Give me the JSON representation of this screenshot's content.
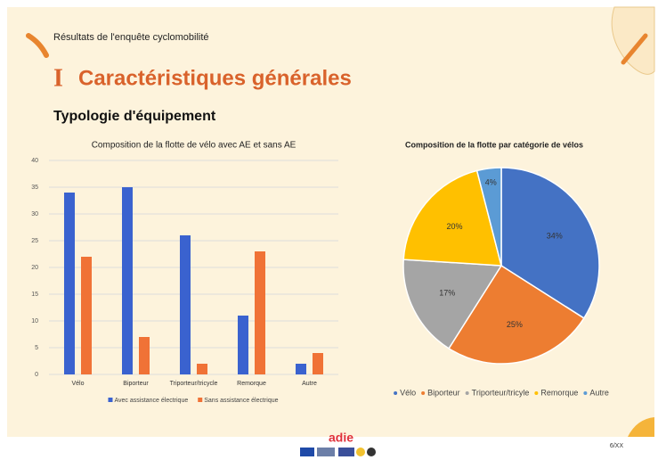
{
  "header": {
    "subtitle": "Résultats de l'enquête cyclomobilité",
    "section_number": "I",
    "title": "Caractéristiques générales",
    "heading": "Typologie d'équipement"
  },
  "chart_data": [
    {
      "type": "bar",
      "title": "Composition de la flotte de vélo avec AE et sans AE",
      "categories": [
        "Vélo",
        "Biporteur",
        "Triporteur/tricycle",
        "Remorque",
        "Autre"
      ],
      "series": [
        {
          "name": "Avec assistance électrique",
          "color": "#3a62cf",
          "values": [
            34,
            35,
            26,
            11,
            2
          ]
        },
        {
          "name": "Sans assistance électrique",
          "color": "#f07236",
          "values": [
            22,
            7,
            2,
            23,
            4
          ]
        }
      ],
      "ylim": [
        0,
        40
      ],
      "yticks": [
        0,
        5,
        10,
        15,
        20,
        25,
        30,
        35,
        40
      ],
      "grid": true,
      "legend": "bottom"
    },
    {
      "type": "pie",
      "title": "Composition de la flotte par catégorie de vélos",
      "categories": [
        "Vélo",
        "Biporteur",
        "Triporteur/tricyle",
        "Remorque",
        "Autre"
      ],
      "values": [
        34,
        25,
        17,
        20,
        4
      ],
      "value_labels": [
        "34%",
        "25%",
        "17%",
        "20%",
        "4%"
      ],
      "colors": [
        "#4472c4",
        "#ed7d31",
        "#a5a5a5",
        "#ffc000",
        "#5b9bd5"
      ],
      "legend": "bottom"
    }
  ],
  "footer": {
    "logo": "adie",
    "page": "6/XX"
  }
}
